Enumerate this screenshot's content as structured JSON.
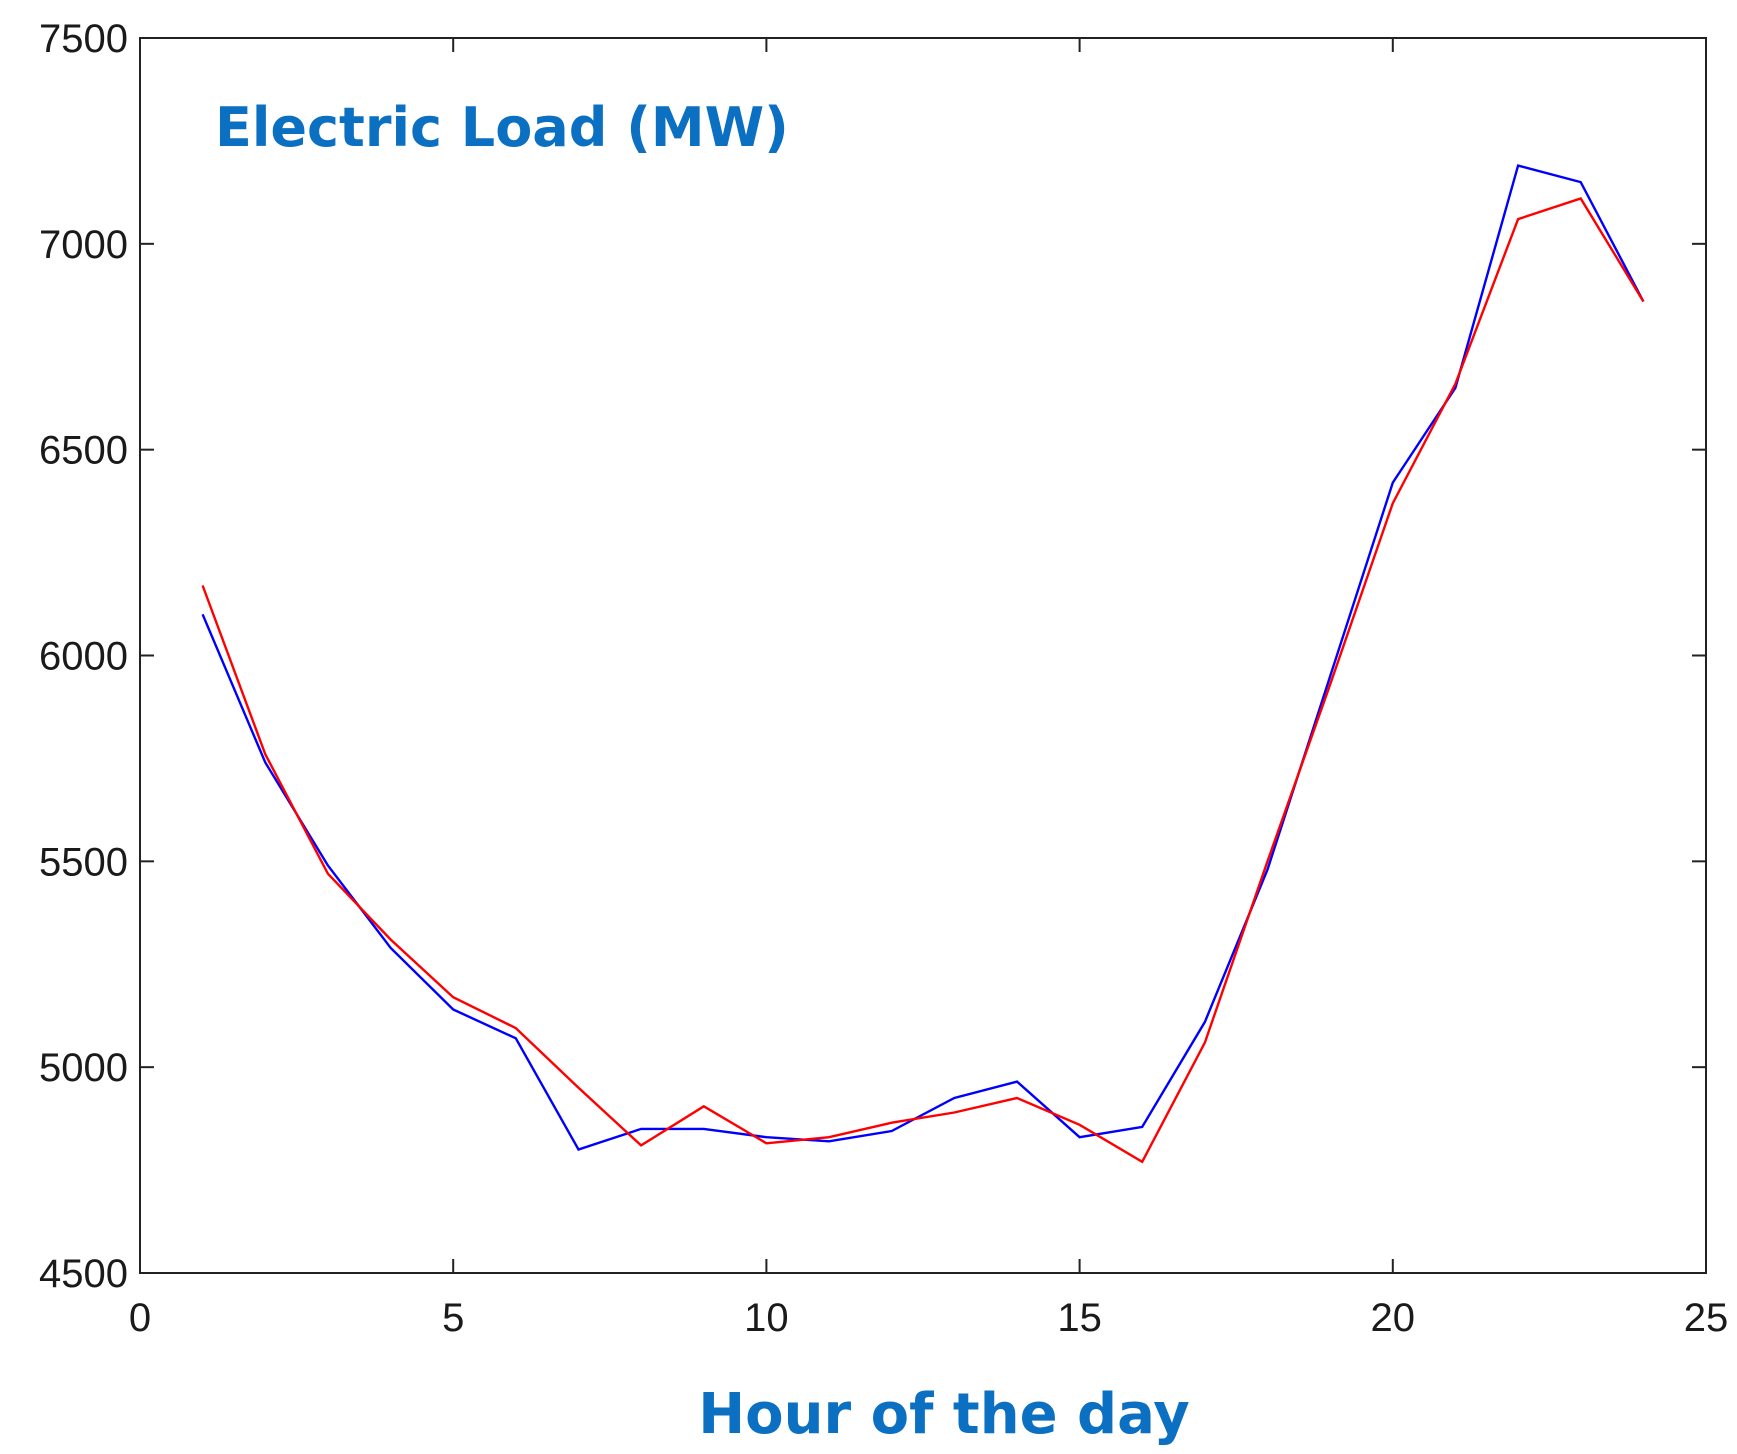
{
  "chart_data": {
    "type": "line",
    "title": "Electric Load (MW)",
    "xlabel": "Hour of the day",
    "ylabel": "",
    "xlim": [
      0,
      25
    ],
    "ylim": [
      4500,
      7500
    ],
    "xticks": [
      0,
      5,
      10,
      15,
      20,
      25
    ],
    "yticks": [
      4500,
      5000,
      5500,
      6000,
      6500,
      7000,
      7500
    ],
    "grid": false,
    "legend": "none",
    "x": [
      1,
      2,
      3,
      4,
      5,
      6,
      7,
      8,
      9,
      10,
      11,
      12,
      13,
      14,
      15,
      16,
      17,
      18,
      19,
      20,
      21,
      22,
      23,
      24
    ],
    "series": [
      {
        "color": "#0000ff",
        "values": [
          6100,
          5740,
          5490,
          5290,
          5140,
          5070,
          4800,
          4850,
          4850,
          4830,
          4820,
          4845,
          4925,
          4965,
          4830,
          4855,
          5110,
          5480,
          5950,
          6420,
          6650,
          7190,
          7150,
          6860
        ]
      },
      {
        "color": "#ff0000",
        "values": [
          6170,
          5760,
          5470,
          5310,
          5170,
          5095,
          4950,
          4810,
          4905,
          4815,
          4830,
          4865,
          4890,
          4925,
          4860,
          4770,
          5060,
          5500,
          5930,
          6370,
          6660,
          7060,
          7110,
          6860
        ]
      }
    ]
  }
}
